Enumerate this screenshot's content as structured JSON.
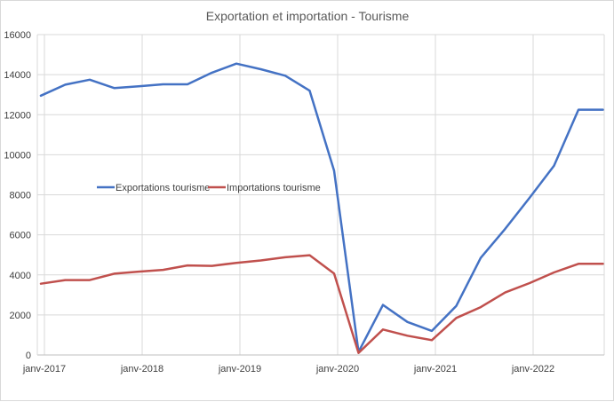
{
  "chart_data": {
    "type": "line",
    "title": "Exportation et importation - Tourisme",
    "xlabel": "",
    "ylabel": "",
    "ylim": [
      0,
      16000
    ],
    "yticks": [
      "0",
      "2000",
      "4000",
      "6000",
      "8000",
      "10000",
      "12000",
      "14000",
      "16000"
    ],
    "xticks": [
      "janv-2017",
      "janv-2018",
      "janv-2019",
      "janv-2020",
      "janv-2021",
      "janv-2022"
    ],
    "x": [
      "2017-Q1",
      "2017-Q2",
      "2017-Q3",
      "2017-Q4",
      "2018-Q1",
      "2018-Q2",
      "2018-Q3",
      "2018-Q4",
      "2019-Q1",
      "2019-Q2",
      "2019-Q3",
      "2019-Q4",
      "2020-Q1",
      "2020-Q2",
      "2020-Q3",
      "2020-Q4",
      "2021-Q1",
      "2021-Q2",
      "2021-Q3",
      "2021-Q4",
      "2022-Q1",
      "2022-Q2",
      "2022-Q3",
      "2022-Q4"
    ],
    "series": [
      {
        "name": "Exportations tourisme",
        "color": "#4472C4",
        "values": [
          12950,
          13500,
          13750,
          13330,
          13420,
          13520,
          13520,
          14100,
          14550,
          14270,
          13950,
          13200,
          9200,
          150,
          2500,
          1650,
          1200,
          2450,
          4850,
          6300,
          7850,
          9450,
          12250,
          12250
        ]
      },
      {
        "name": "Importations tourisme",
        "color": "#C0504D",
        "values": [
          3560,
          3740,
          3740,
          4060,
          4160,
          4250,
          4470,
          4450,
          4600,
          4720,
          4880,
          4980,
          4070,
          100,
          1270,
          960,
          740,
          1850,
          2390,
          3120,
          3590,
          4120,
          4550,
          4550
        ]
      }
    ],
    "grid": true,
    "legend": "inside-left"
  }
}
